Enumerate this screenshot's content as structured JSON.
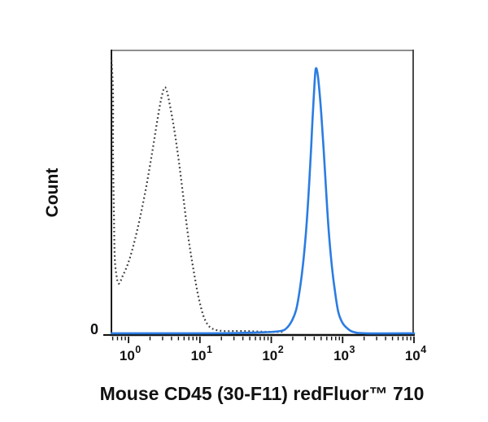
{
  "chart_data": {
    "type": "line",
    "subtype": "flow_cytometry_histogram_overlay",
    "title": "",
    "xlabel": "Mouse CD45 (30-F11) redFluor™ 710",
    "ylabel": "Count",
    "x_scale": "log10",
    "x_tick_exponents": [
      0,
      1,
      2,
      3,
      4
    ],
    "x_tick_base": "10",
    "y_ticks": [
      "0"
    ],
    "x_log_range": [
      -0.24,
      4.0
    ],
    "y_norm_range": [
      0,
      1
    ],
    "grid": false,
    "legend": false,
    "axis_color": "#111111",
    "border_colors": {
      "top": "#8e8e8e",
      "right": "#4b4b4b",
      "left": "#1c1c1c"
    },
    "series": [
      {
        "name": "dotted_control",
        "style": "dotted",
        "color": "#3a3a3a",
        "peak": {
          "x_value_approx": 3.2,
          "height_norm": 0.87
        },
        "edge_spike": {
          "x_log": -0.24,
          "height_norm": 0.96
        },
        "points_log_norm": [
          [
            -0.239,
            0.963
          ],
          [
            -0.217,
            0.846
          ],
          [
            -0.217,
            0.632
          ],
          [
            -0.205,
            0.419
          ],
          [
            -0.194,
            0.276
          ],
          [
            -0.171,
            0.211
          ],
          [
            -0.137,
            0.18
          ],
          [
            -0.08,
            0.208
          ],
          [
            -0.011,
            0.248
          ],
          [
            0.068,
            0.313
          ],
          [
            0.16,
            0.41
          ],
          [
            0.251,
            0.524
          ],
          [
            0.33,
            0.638
          ],
          [
            0.399,
            0.746
          ],
          [
            0.456,
            0.826
          ],
          [
            0.501,
            0.866
          ],
          [
            0.536,
            0.855
          ],
          [
            0.581,
            0.803
          ],
          [
            0.638,
            0.724
          ],
          [
            0.707,
            0.604
          ],
          [
            0.775,
            0.467
          ],
          [
            0.843,
            0.333
          ],
          [
            0.912,
            0.225
          ],
          [
            0.98,
            0.134
          ],
          [
            1.048,
            0.068
          ],
          [
            1.117,
            0.034
          ],
          [
            1.197,
            0.02
          ],
          [
            1.333,
            0.014
          ],
          [
            1.618,
            0.014
          ],
          [
            1.96,
            0.011
          ],
          [
            2.188,
            0.011
          ]
        ]
      },
      {
        "name": "solid_blue_stained",
        "style": "solid",
        "color": "#2b7ce2",
        "peak": {
          "x_value_approx": 420,
          "height_norm": 0.93
        },
        "points_log_norm": [
          [
            -0.239,
            0.006
          ],
          [
            1.162,
            0.006
          ],
          [
            1.846,
            0.009
          ],
          [
            2.131,
            0.014
          ],
          [
            2.222,
            0.026
          ],
          [
            2.291,
            0.051
          ],
          [
            2.348,
            0.088
          ],
          [
            2.393,
            0.148
          ],
          [
            2.439,
            0.234
          ],
          [
            2.484,
            0.353
          ],
          [
            2.519,
            0.481
          ],
          [
            2.553,
            0.627
          ],
          [
            2.575,
            0.741
          ],
          [
            2.598,
            0.846
          ],
          [
            2.621,
            0.929
          ],
          [
            2.644,
            0.923
          ],
          [
            2.667,
            0.877
          ],
          [
            2.701,
            0.775
          ],
          [
            2.735,
            0.647
          ],
          [
            2.769,
            0.504
          ],
          [
            2.804,
            0.368
          ],
          [
            2.849,
            0.242
          ],
          [
            2.895,
            0.148
          ],
          [
            2.94,
            0.08
          ],
          [
            2.997,
            0.043
          ],
          [
            3.066,
            0.023
          ],
          [
            3.145,
            0.011
          ],
          [
            3.328,
            0.006
          ],
          [
            4.0,
            0.006
          ]
        ]
      }
    ]
  }
}
